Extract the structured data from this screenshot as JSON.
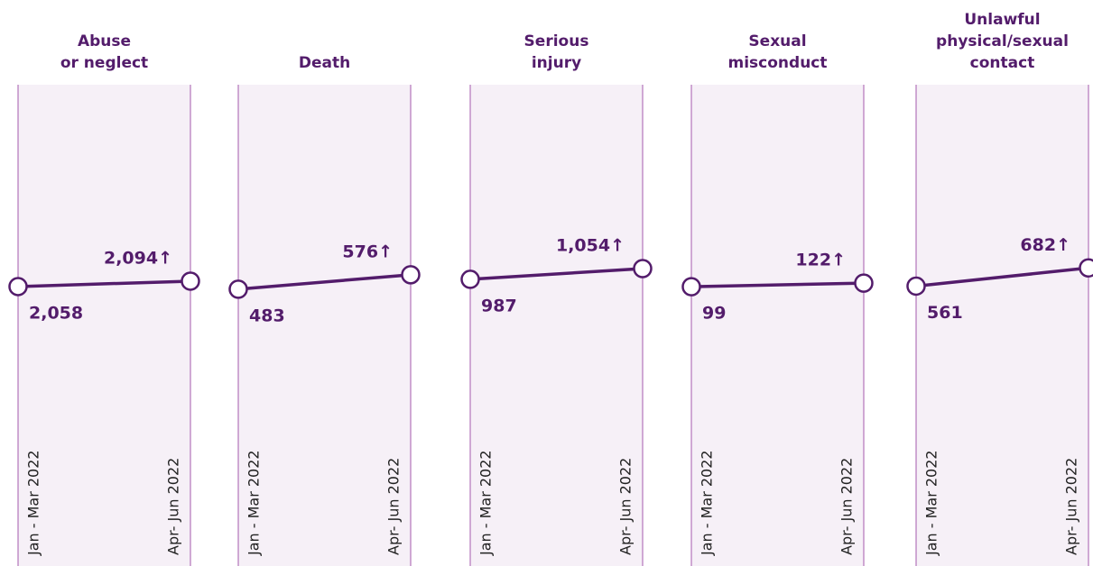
{
  "chart_data": [
    {
      "type": "line",
      "title": "Abuse\nor neglect",
      "categories": [
        "Jan - Mar 2022",
        "Apr- Jun 2022"
      ],
      "values": [
        2058,
        2094
      ],
      "value_labels": [
        "2,058",
        "2,094↑"
      ],
      "ylim": [
        200,
        3400
      ],
      "color": "#531c6b"
    },
    {
      "type": "line",
      "title": "Death",
      "categories": [
        "Jan - Mar 2022",
        "Apr- Jun 2022"
      ],
      "values": [
        483,
        576
      ],
      "value_labels": [
        "483",
        "576↑"
      ],
      "ylim": [
        -1300,
        1800
      ],
      "color": "#531c6b"
    },
    {
      "type": "line",
      "title": "Serious\ninjury",
      "categories": [
        "Jan - Mar 2022",
        "Apr- Jun 2022"
      ],
      "values": [
        987,
        1054
      ],
      "value_labels": [
        "987",
        "1,054↑"
      ],
      "ylim": [
        -800,
        2200
      ],
      "color": "#531c6b"
    },
    {
      "type": "line",
      "title": "Sexual\nmisconduct",
      "categories": [
        "Jan - Mar 2022",
        "Apr- Jun 2022"
      ],
      "values": [
        99,
        122
      ],
      "value_labels": [
        "99",
        "122↑"
      ],
      "ylim": [
        -1700,
        1400
      ],
      "color": "#531c6b"
    },
    {
      "type": "line",
      "title": "Unlawful\nphysical/sexual\ncontact",
      "categories": [
        "Jan - Mar 2022",
        "Apr- Jun 2022"
      ],
      "values": [
        561,
        682
      ],
      "value_labels": [
        "561",
        "682↑"
      ],
      "ylim": [
        -1300,
        1900
      ],
      "color": "#531c6b"
    }
  ]
}
